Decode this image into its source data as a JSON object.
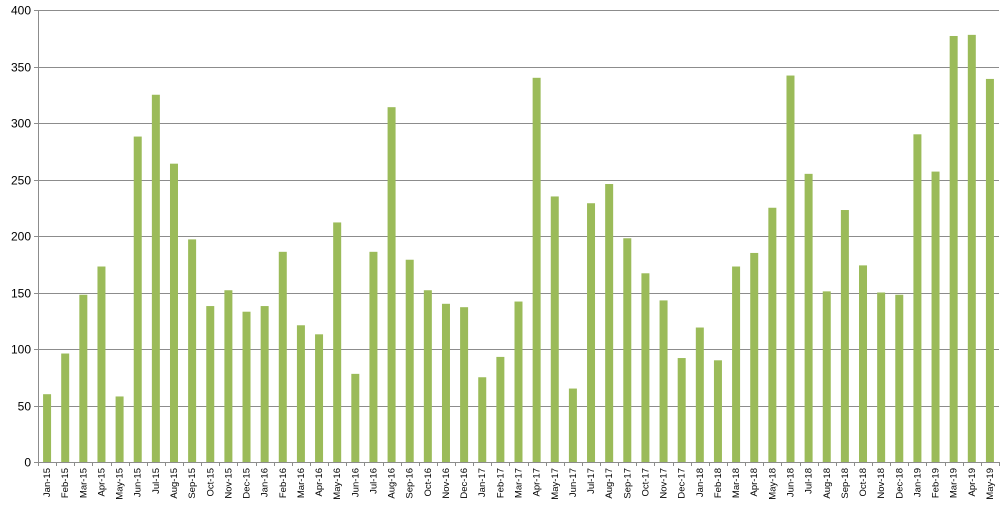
{
  "chart_data": {
    "type": "bar",
    "title": "",
    "xlabel": "",
    "ylabel": "",
    "ylim": [
      0,
      400
    ],
    "yticks": [
      0,
      50,
      100,
      150,
      200,
      250,
      300,
      350,
      400
    ],
    "grid": true,
    "legend": "none",
    "colors": {
      "bar": "#9bbb59",
      "grid": "#8c8c8c",
      "axis": "#8c8c8c"
    },
    "categories": [
      "Jan-15",
      "Feb-15",
      "Mar-15",
      "Apr-15",
      "May-15",
      "Jun-15",
      "Jul-15",
      "Aug-15",
      "Sep-15",
      "Oct-15",
      "Nov-15",
      "Dec-15",
      "Jan-16",
      "Feb-16",
      "Mar-16",
      "Apr-16",
      "May-16",
      "Jun-16",
      "Jul-16",
      "Aug-16",
      "Sep-16",
      "Oct-16",
      "Nov-16",
      "Dec-16",
      "Jan-17",
      "Feb-17",
      "Mar-17",
      "Apr-17",
      "May-17",
      "Jun-17",
      "Jul-17",
      "Aug-17",
      "Sep-17",
      "Oct-17",
      "Nov-17",
      "Dec-17",
      "Jan-18",
      "Feb-18",
      "Mar-18",
      "Apr-18",
      "May-18",
      "Jun-18",
      "Jul-18",
      "Aug-18",
      "Sep-18",
      "Oct-18",
      "Nov-18",
      "Dec-18",
      "Jan-19",
      "Feb-19",
      "Mar-19",
      "Apr-19",
      "May-19"
    ],
    "values": [
      60,
      96,
      148,
      173,
      58,
      288,
      325,
      264,
      197,
      138,
      152,
      133,
      138,
      186,
      121,
      113,
      212,
      78,
      186,
      314,
      179,
      152,
      140,
      137,
      75,
      93,
      142,
      340,
      235,
      65,
      229,
      246,
      198,
      167,
      143,
      92,
      119,
      90,
      173,
      185,
      225,
      342,
      255,
      151,
      223,
      174,
      150,
      148,
      290,
      257,
      377,
      378,
      339
    ]
  }
}
